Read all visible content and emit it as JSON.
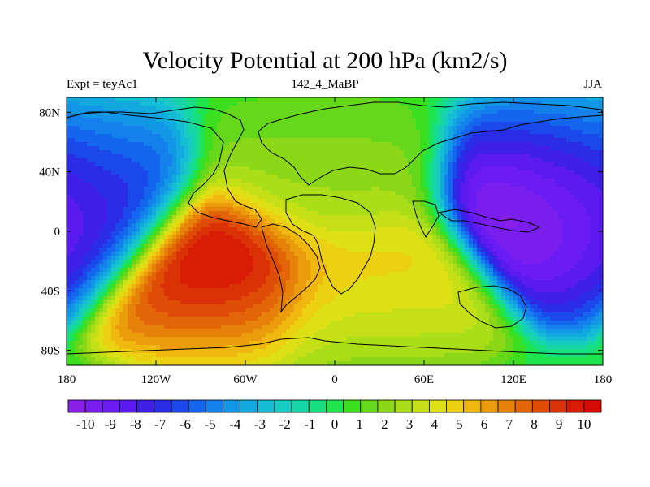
{
  "chart_data": {
    "type": "heatmap",
    "title": "Velocity Potential at 200 hPa (km2/s)",
    "left_string": "Expt = teyAc1",
    "center_string": "142_4_MaBP",
    "right_string": "JJA",
    "x_ticks": [
      "180",
      "120W",
      "60W",
      "0",
      "60E",
      "120E",
      "180"
    ],
    "x_tick_values": [
      -180,
      -120,
      -60,
      0,
      60,
      120,
      180
    ],
    "y_ticks": [
      "80N",
      "40N",
      "0",
      "40S",
      "80S"
    ],
    "y_tick_values": [
      80,
      40,
      0,
      -40,
      -80
    ],
    "xlim": [
      -180,
      180
    ],
    "ylim": [
      -90,
      90
    ],
    "colorbar_labels": [
      "-10",
      "-9",
      "-8",
      "-7",
      "-6",
      "-5",
      "-4",
      "-3",
      "-2",
      "-1",
      "0",
      "1",
      "2",
      "3",
      "4",
      "5",
      "6",
      "7",
      "8",
      "9",
      "10"
    ],
    "colorbar_min": -11,
    "colorbar_max": 11,
    "colors": [
      "#8a20e8",
      "#7a1ef0",
      "#6a1cf2",
      "#5a1af0",
      "#3f1ee8",
      "#2a2ce6",
      "#1a48ea",
      "#1566ee",
      "#1480ec",
      "#1296e6",
      "#12aade",
      "#14bcd6",
      "#18ccc4",
      "#16d6a6",
      "#18e080",
      "#1ee44e",
      "#3cde20",
      "#66d81c",
      "#8cd818",
      "#aade18",
      "#c6e018",
      "#dce014",
      "#ecd012",
      "#f0b80e",
      "#ea9c0c",
      "#e6820a",
      "#e26608",
      "#de4c06",
      "#da3206",
      "#d81c06",
      "#d60a06"
    ],
    "field_centers": [
      {
        "lon": -72,
        "lat": -22,
        "value": 11
      },
      {
        "lon": 20,
        "lat": -28,
        "value": 5
      },
      {
        "lon": -10,
        "lat": 22,
        "value": 2.5
      },
      {
        "lon": 150,
        "lat": 15,
        "value": -11
      },
      {
        "lon": -170,
        "lat": 15,
        "value": -7
      }
    ],
    "coastline_note": "schematic continental outlines"
  }
}
